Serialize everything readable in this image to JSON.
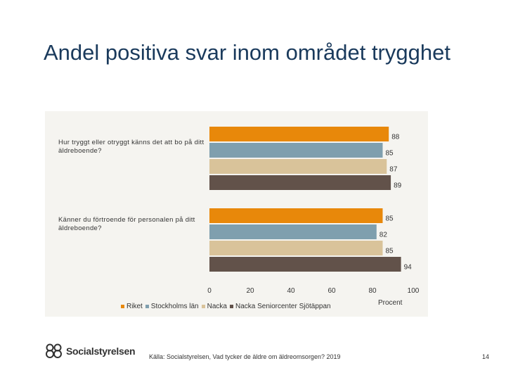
{
  "slide": {
    "title": "Andel positiva svar inom området trygghet",
    "source": "Källa: Socialstyrelsen, Vad tycker de äldre om äldreomsorgen? 2019",
    "page_number": "14",
    "logo_text": "Socialstyrelsen",
    "logo_icon": "socialstyrelsen-logo-icon"
  },
  "chart_data": {
    "type": "bar",
    "orientation": "horizontal",
    "categories": [
      "Hur tryggt eller otryggt känns det att bo på ditt äldreboende?",
      "Känner du förtroende för personalen på ditt äldreboende?"
    ],
    "series": [
      {
        "name": "Riket",
        "values": [
          88,
          85
        ],
        "color": "#e8880a"
      },
      {
        "name": "Stockholms län",
        "values": [
          85,
          82
        ],
        "color": "#7f9fae"
      },
      {
        "name": "Nacka",
        "values": [
          87,
          85
        ],
        "color": "#d9c39a"
      },
      {
        "name": "Nacka Seniorcenter Sjötäppan",
        "values": [
          89,
          94
        ],
        "color": "#62524a"
      }
    ],
    "xlim": [
      0,
      100
    ],
    "xticks": [
      "0",
      "20",
      "40",
      "60",
      "80",
      "100"
    ],
    "xlabel": "Procent",
    "grid": false,
    "legend_position": "bottom"
  }
}
